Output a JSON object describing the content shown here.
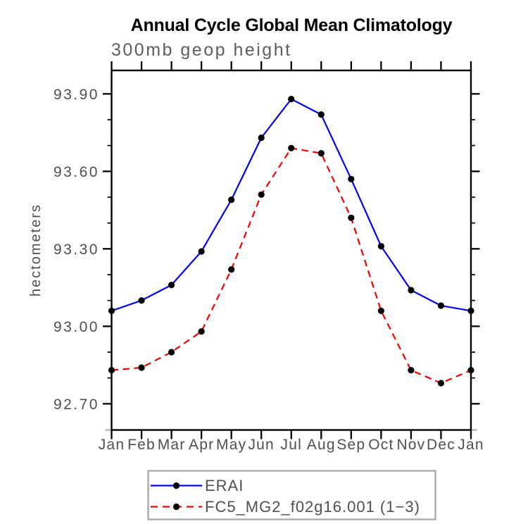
{
  "title": "Annual Cycle Global Mean Climatology",
  "subtitle": "300mb geop height",
  "colors": {
    "series_erai": "#0000ee",
    "series_fc5": "#f40000",
    "marker": "#000000",
    "axis": "#000000",
    "gray_text": "#4f4f4f",
    "legend_border": "#aaaaaa",
    "axis_artifact_gray": "#b5b5b5"
  },
  "chart_data": {
    "type": "line",
    "title": "Annual Cycle Global Mean Climatology",
    "subtitle": "300mb geop height",
    "xlabel": "",
    "ylabel": "hectometers",
    "categories": [
      "Jan",
      "Feb",
      "Mar",
      "Apr",
      "May",
      "Jun",
      "Jul",
      "Aug",
      "Sep",
      "Oct",
      "Nov",
      "Dec",
      "Jan"
    ],
    "series": [
      {
        "name": "ERAI",
        "color": "#0000ee",
        "line_style": "solid",
        "marker": "filled-circle",
        "marker_color": "#000000",
        "values": [
          93.06,
          93.1,
          93.16,
          93.29,
          93.49,
          93.73,
          93.88,
          93.82,
          93.57,
          93.31,
          93.14,
          93.08,
          93.06
        ]
      },
      {
        "name": "FC5_MG2_f02g16.001 (1−3)",
        "color": "#f40000",
        "line_style": "dashed",
        "marker": "filled-circle",
        "marker_color": "#000000",
        "values": [
          92.83,
          92.84,
          92.9,
          92.98,
          93.22,
          93.51,
          93.69,
          93.67,
          93.42,
          93.06,
          92.83,
          92.78,
          92.83
        ]
      }
    ],
    "ylim": [
      92.6,
      93.99
    ],
    "y_major_ticks": [
      92.7,
      93.0,
      93.3,
      93.6,
      93.9
    ],
    "y_major_tick_labels": [
      "92.70",
      "93.00",
      "93.30",
      "93.60",
      "93.90"
    ],
    "y_minor_step": 0.1,
    "grid": false,
    "legend_position": "bottom"
  }
}
